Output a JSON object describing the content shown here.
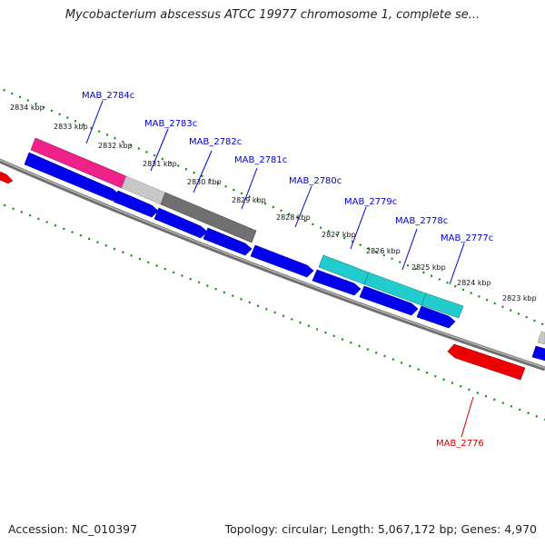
{
  "title": "Mycobacterium abscessus ATCC 19977 chromosome 1, complete se...",
  "footer": {
    "accession": "Accession: NC_010397",
    "stats": "Topology: circular; Length: 5,067,172 bp; Genes: 4,970"
  },
  "colors": {
    "forward_label": "#0000cc",
    "reverse_label": "#cc0000",
    "cds": "#0000ee",
    "gene_pink": "#ee2288",
    "gene_light_grey": "#c8c8c8",
    "gene_dark_grey": "#707070",
    "gene_cyan": "#22cccc",
    "gene_red": "#ee0000",
    "backbone": "#808080",
    "tick": "#118811"
  },
  "kbp_ticks": [
    {
      "label": "2834 kbp"
    },
    {
      "label": "2833 kbp"
    },
    {
      "label": "2832 kbp"
    },
    {
      "label": "2831 kbp"
    },
    {
      "label": "2830 kbp"
    },
    {
      "label": "2829 kbp"
    },
    {
      "label": "2828 kbp"
    },
    {
      "label": "2827 kbp"
    },
    {
      "label": "2826 kbp"
    },
    {
      "label": "2825 kbp"
    },
    {
      "label": "2824 kbp"
    },
    {
      "label": "2823 kbp"
    }
  ],
  "gene_labels": [
    {
      "label": "MAB_2784c"
    },
    {
      "label": "MAB_2783c"
    },
    {
      "label": "MAB_2782c"
    },
    {
      "label": "MAB_2781c"
    },
    {
      "label": "MAB_2780c"
    },
    {
      "label": "MAB_2779c"
    },
    {
      "label": "MAB_2778c"
    },
    {
      "label": "MAB_2777c"
    },
    {
      "label": "MAB_2776"
    }
  ]
}
